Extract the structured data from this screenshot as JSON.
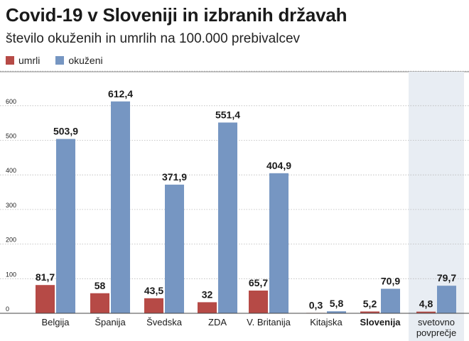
{
  "title": "Covid-19 v Sloveniji in izbranih državah",
  "subtitle": "število okuženih in umrlih na 100.000 prebivalcev",
  "colors": {
    "umrli": "#b64a46",
    "okuzeni": "#7696c2",
    "highlight": "#e8edf3",
    "grid": "#b8b8b8"
  },
  "chart_data": {
    "type": "bar",
    "categories": [
      "Belgija",
      "Španija",
      "Švedska",
      "ZDA",
      "V. Britanija",
      "Kitajska",
      "Slovenija",
      "svetovno povprečje"
    ],
    "bold_categories": [
      "Slovenija"
    ],
    "highlighted_categories": [
      "svetovno povprečje"
    ],
    "series": [
      {
        "name": "umrli",
        "values": [
          81.7,
          58,
          43.5,
          32,
          65.7,
          0.3,
          5.2,
          4.8
        ],
        "labels": [
          "81,7",
          "58",
          "43,5",
          "32",
          "65,7",
          "0,3",
          "5,2",
          "4,8"
        ]
      },
      {
        "name": "okuženi",
        "values": [
          503.9,
          612.4,
          371.9,
          551.4,
          404.9,
          5.8,
          70.9,
          79.7
        ],
        "labels": [
          "503,9",
          "612,4",
          "371,9",
          "551,4",
          "404,9",
          "5,8",
          "70,9",
          "79,7"
        ]
      }
    ],
    "yticks": [
      0,
      100,
      200,
      300,
      400,
      500,
      600
    ],
    "ylim": [
      0,
      700
    ],
    "grid": true,
    "legend_position": "top-left"
  }
}
